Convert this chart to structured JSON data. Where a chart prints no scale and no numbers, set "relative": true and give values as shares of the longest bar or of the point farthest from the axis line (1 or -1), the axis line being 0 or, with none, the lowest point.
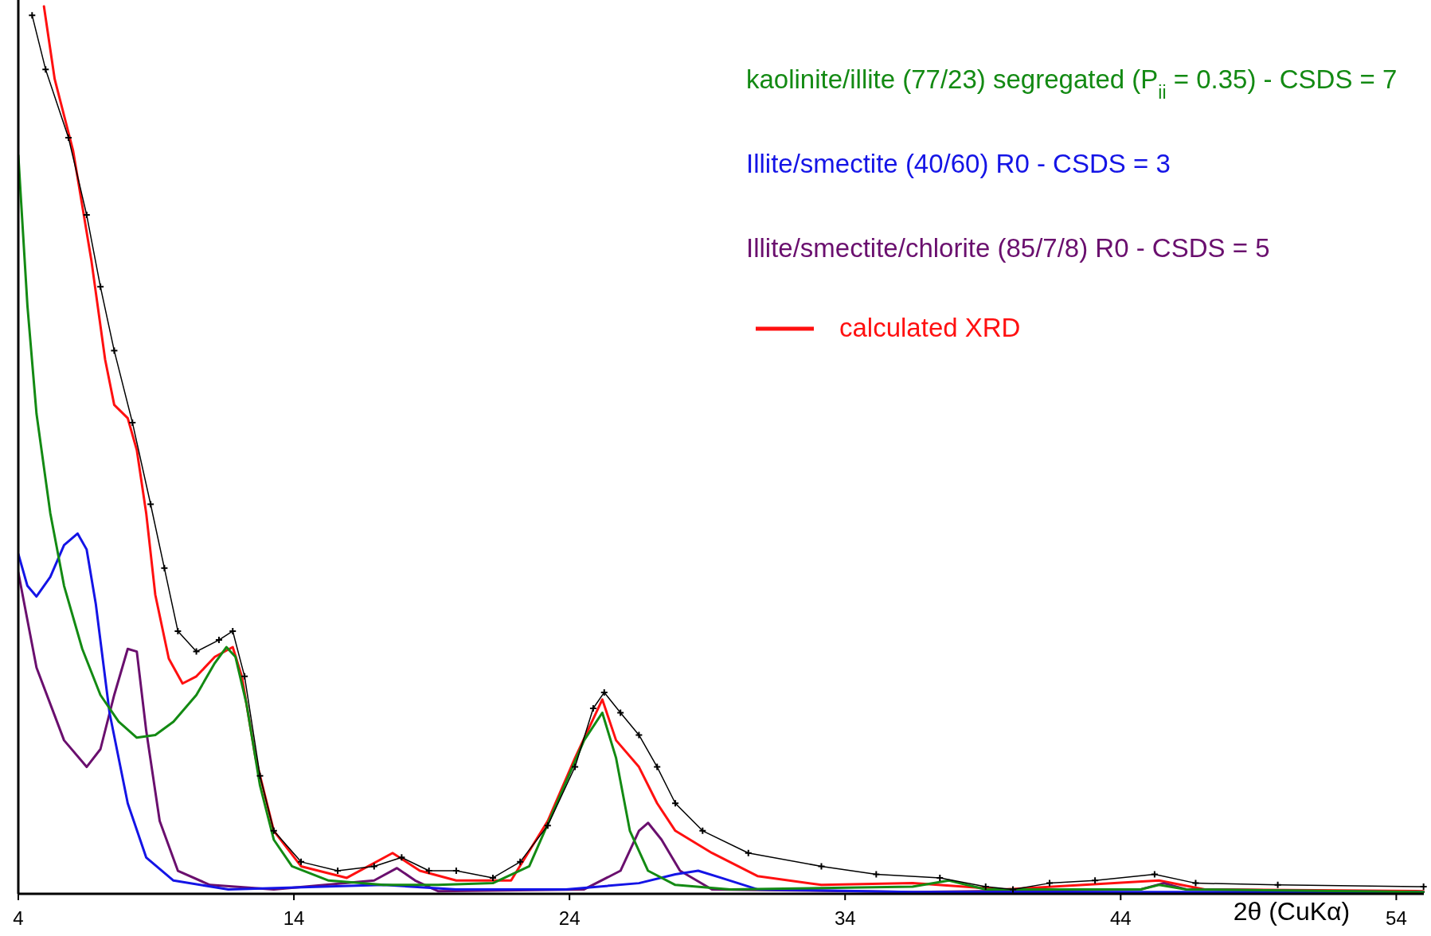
{
  "chart_data": {
    "type": "line",
    "relative": true,
    "xlabel": "2θ (CuKα)",
    "xlim": [
      4,
      55
    ],
    "xticks": [
      4,
      14,
      24,
      34,
      44,
      54
    ],
    "grid": false,
    "legend": "top right",
    "line_style": "solid",
    "marker": "none",
    "series": [
      {
        "marker": "cross",
        "color": "#000000",
        "x": [
          4.5,
          4.99,
          5.82,
          6.48,
          6.98,
          7.48,
          8.14,
          8.8,
          9.3,
          9.79,
          10.46,
          11.28,
          11.78,
          12.21,
          12.77,
          13.27,
          14.26,
          15.59,
          16.91,
          17.91,
          18.9,
          19.89,
          21.22,
          22.21,
          23.21,
          24.2,
          24.86,
          25.26,
          25.85,
          26.52,
          27.18,
          27.84,
          28.83,
          30.49,
          33.14,
          35.13,
          37.44,
          39.1,
          40.09,
          41.42,
          43.07,
          45.23,
          46.72,
          49.7,
          54.99
        ],
        "values": [
          0.99,
          0.929,
          0.852,
          0.765,
          0.684,
          0.612,
          0.531,
          0.439,
          0.367,
          0.296,
          0.273,
          0.286,
          0.296,
          0.245,
          0.133,
          0.071,
          0.036,
          0.026,
          0.031,
          0.041,
          0.026,
          0.026,
          0.018,
          0.036,
          0.077,
          0.143,
          0.209,
          0.227,
          0.204,
          0.179,
          0.143,
          0.102,
          0.071,
          0.046,
          0.031,
          0.022,
          0.018,
          0.008,
          0.005,
          0.012,
          0.015,
          0.022,
          0.012,
          0.01,
          0.008
        ]
      },
      {
        "name": "kaolinite/illite (77/23) segregated (P$_{ii}$ = 0.35) - CSDS = 7",
        "color": "#138a13",
        "x": [
          4.0,
          4.33,
          4.66,
          5.16,
          5.66,
          6.32,
          6.98,
          7.64,
          8.3,
          8.97,
          9.63,
          10.46,
          11.13,
          11.55,
          11.88,
          12.28,
          12.77,
          13.27,
          13.93,
          15.26,
          17.25,
          19.23,
          21.22,
          22.54,
          23.54,
          24.53,
          25.19,
          25.69,
          26.19,
          26.85,
          27.84,
          29.83,
          36.45,
          37.77,
          39.1,
          44.73,
          45.39,
          46.38,
          54.99
        ],
        "values": [
          0.832,
          0.663,
          0.541,
          0.429,
          0.347,
          0.276,
          0.224,
          0.194,
          0.176,
          0.179,
          0.194,
          0.224,
          0.26,
          0.278,
          0.267,
          0.214,
          0.122,
          0.061,
          0.031,
          0.015,
          0.01,
          0.01,
          0.012,
          0.031,
          0.102,
          0.173,
          0.204,
          0.153,
          0.071,
          0.026,
          0.01,
          0.005,
          0.008,
          0.015,
          0.005,
          0.005,
          0.01,
          0.005,
          0.002
        ]
      },
      {
        "name": "Illite/smectite (40/60) R0 - CSDS = 3",
        "color": "#1414e6",
        "x": [
          4.0,
          4.33,
          4.66,
          5.16,
          5.66,
          6.15,
          6.48,
          6.81,
          7.31,
          7.97,
          8.64,
          9.63,
          11.62,
          17.25,
          19.89,
          23.87,
          26.52,
          27.84,
          28.67,
          29.5,
          30.82,
          36.45,
          54.99
        ],
        "values": [
          0.383,
          0.347,
          0.335,
          0.357,
          0.393,
          0.406,
          0.388,
          0.327,
          0.204,
          0.102,
          0.041,
          0.015,
          0.005,
          0.01,
          0.005,
          0.005,
          0.012,
          0.022,
          0.026,
          0.018,
          0.005,
          0.002,
          0.002
        ]
      },
      {
        "name": "Illite/smectite/chlorite (85/7/8) R0  - CSDS = 5",
        "color": "#6a0f6e",
        "x": [
          4.0,
          4.66,
          5.66,
          6.48,
          6.98,
          7.48,
          7.97,
          8.3,
          8.64,
          9.13,
          9.79,
          10.95,
          13.27,
          16.91,
          17.74,
          18.4,
          19.23,
          24.53,
          25.85,
          26.52,
          26.85,
          27.34,
          28.01,
          29.17,
          36.45,
          44.73,
          45.56,
          46.38,
          54.99
        ],
        "values": [
          0.362,
          0.255,
          0.173,
          0.143,
          0.163,
          0.224,
          0.276,
          0.273,
          0.184,
          0.082,
          0.026,
          0.01,
          0.005,
          0.015,
          0.029,
          0.015,
          0.003,
          0.005,
          0.026,
          0.071,
          0.08,
          0.061,
          0.026,
          0.005,
          0.002,
          0.005,
          0.012,
          0.005,
          0.002
        ]
      },
      {
        "name": "calculated XRD",
        "color": "#ff1010",
        "x": [
          4.93,
          5.32,
          5.99,
          6.65,
          7.15,
          7.48,
          7.97,
          8.3,
          8.64,
          8.97,
          9.46,
          9.96,
          10.46,
          11.13,
          11.78,
          12.11,
          12.61,
          13.27,
          14.26,
          15.92,
          17.58,
          18.57,
          19.89,
          21.88,
          23.21,
          24.2,
          25.19,
          25.69,
          26.52,
          27.18,
          27.84,
          29.17,
          30.82,
          33.14,
          36.45,
          39.76,
          45.39,
          47.05,
          54.99
        ],
        "values": [
          1.0,
          0.918,
          0.837,
          0.714,
          0.602,
          0.551,
          0.536,
          0.5,
          0.429,
          0.337,
          0.265,
          0.237,
          0.245,
          0.267,
          0.278,
          0.245,
          0.153,
          0.071,
          0.031,
          0.018,
          0.046,
          0.026,
          0.015,
          0.015,
          0.082,
          0.153,
          0.219,
          0.173,
          0.143,
          0.102,
          0.071,
          0.046,
          0.02,
          0.01,
          0.012,
          0.005,
          0.015,
          0.005,
          0.003
        ]
      }
    ]
  }
}
